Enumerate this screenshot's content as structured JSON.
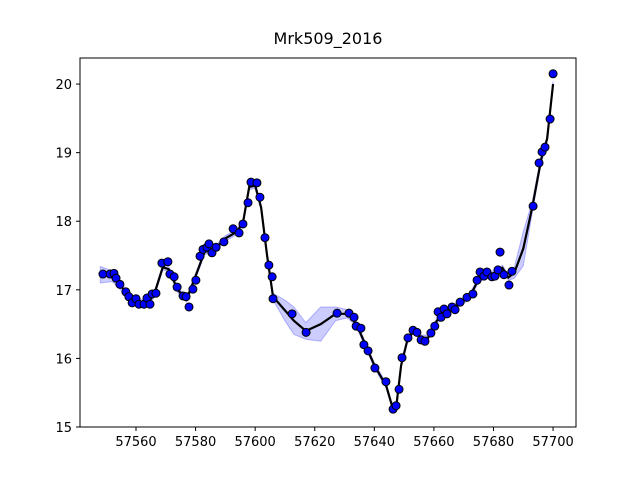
{
  "chart_data": {
    "type": "scatter",
    "title": "Mrk509_2016",
    "xlim": [
      57541.2,
      57707.7
    ],
    "ylim": [
      15,
      20.38
    ],
    "xticks": [
      57560,
      57580,
      57600,
      57620,
      57640,
      57660,
      57680,
      57700
    ],
    "yticks": [
      15,
      16,
      17,
      18,
      19,
      20
    ],
    "points": {
      "color": "#0000ff",
      "x": [
        57548.9,
        57551.3,
        57552.6,
        57553.3,
        57554.6,
        57556.6,
        57557.6,
        57558.7,
        57560,
        57561,
        57562.7,
        57563.7,
        57564.7,
        57565.4,
        57566.7,
        57568.7,
        57570.7,
        57571.4,
        57572.8,
        57573.8,
        57575.8,
        57576.8,
        57577.8,
        57579.1,
        57580.1,
        57581.5,
        57582.5,
        57583.8,
        57584.5,
        57585.5,
        57586.9,
        57589.5,
        57592.6,
        57594.6,
        57595.9,
        57597.6,
        57598.6,
        57600.6,
        57601.6,
        57603.3,
        57604.6,
        57605.7,
        57606,
        57612.4,
        57617.1,
        57627.5,
        57631.5,
        57633.2,
        57633.9,
        57635.5,
        57636.5,
        57637.9,
        57640.2,
        57643.9,
        57646.3,
        57647.3,
        57648.3,
        57649.3,
        57651.3,
        57653,
        57654.3,
        57655.7,
        57657,
        57659,
        57660.3,
        57661.4,
        57662.4,
        57663.4,
        57664.4,
        57666.1,
        57667.1,
        57668.8,
        57671.1,
        57673.1,
        57674.5,
        57675.5,
        57676.8,
        57677.8,
        57679.5,
        57680.5,
        57681.5,
        57682.2,
        57683.5,
        57685.2,
        57686.2,
        57693.3,
        57695.3,
        57696.3,
        57697.3,
        57699,
        57700
      ],
      "values": [
        17.23,
        17.23,
        17.24,
        17.17,
        17.08,
        16.97,
        16.9,
        16.81,
        16.87,
        16.79,
        16.79,
        16.88,
        16.79,
        16.94,
        16.95,
        17.39,
        17.41,
        17.23,
        17.19,
        17.04,
        16.91,
        16.9,
        16.75,
        17.01,
        17.14,
        17.49,
        17.59,
        17.62,
        17.67,
        17.54,
        17.62,
        17.7,
        17.89,
        17.83,
        17.96,
        18.27,
        18.57,
        18.56,
        18.35,
        17.76,
        17.36,
        17.19,
        16.87,
        16.65,
        16.38,
        16.66,
        16.66,
        16.6,
        16.47,
        16.44,
        16.2,
        16.11,
        15.86,
        15.66,
        15.26,
        15.31,
        15.55,
        16.01,
        16.3,
        16.41,
        16.38,
        16.27,
        16.25,
        16.37,
        16.47,
        16.68,
        16.6,
        16.72,
        16.65,
        16.75,
        16.71,
        16.82,
        16.89,
        16.94,
        17.14,
        17.26,
        17.2,
        17.26,
        17.19,
        17.2,
        17.29,
        17.55,
        17.22,
        17.07,
        17.27,
        18.22,
        18.85,
        19.01,
        19.08,
        19.49,
        20.15
      ]
    },
    "model": {
      "color": "#000000",
      "band_color": "#0000ff",
      "x": [
        57548,
        57552,
        57556,
        57560,
        57564,
        57566,
        57569,
        57571,
        57574,
        57577,
        57580,
        57583,
        57587,
        57590,
        57594,
        57596,
        57598,
        57600,
        57602,
        57604,
        57606,
        57610,
        57613,
        57617,
        57622,
        57627,
        57631,
        57634,
        57637,
        57640,
        57644,
        57646,
        57647.5,
        57649,
        57651,
        57653,
        57656,
        57658,
        57661,
        57664,
        57668,
        57672,
        57675,
        57678,
        57681,
        57683,
        57685,
        57687,
        57690,
        57693,
        57696,
        57698,
        57700
      ],
      "values": [
        17.22,
        17.2,
        17.0,
        16.82,
        16.82,
        16.92,
        17.33,
        17.3,
        17.0,
        16.86,
        17.2,
        17.55,
        17.62,
        17.75,
        17.85,
        18.0,
        18.5,
        18.52,
        18.2,
        17.5,
        16.9,
        16.7,
        16.55,
        16.4,
        16.5,
        16.65,
        16.65,
        16.5,
        16.2,
        15.9,
        15.6,
        15.3,
        15.35,
        15.9,
        16.25,
        16.4,
        16.3,
        16.3,
        16.55,
        16.67,
        16.78,
        16.9,
        17.15,
        17.22,
        17.25,
        17.32,
        17.18,
        17.25,
        17.6,
        18.2,
        18.9,
        19.2,
        20.0
      ],
      "upper": [
        17.34,
        17.28,
        17.05,
        16.86,
        16.86,
        16.96,
        17.37,
        17.34,
        17.04,
        16.9,
        17.24,
        17.59,
        17.66,
        17.79,
        17.89,
        18.04,
        18.54,
        18.56,
        18.24,
        17.54,
        16.95,
        16.85,
        16.75,
        16.52,
        16.75,
        16.75,
        16.71,
        16.54,
        16.24,
        15.94,
        15.64,
        15.33,
        15.38,
        15.94,
        16.29,
        16.44,
        16.34,
        16.34,
        16.59,
        16.71,
        16.82,
        16.94,
        17.19,
        17.26,
        17.29,
        17.36,
        17.22,
        17.33,
        17.85,
        18.28,
        18.96,
        19.24,
        20.04
      ],
      "lower": [
        17.1,
        17.12,
        16.95,
        16.78,
        16.78,
        16.88,
        17.29,
        17.26,
        16.96,
        16.82,
        17.16,
        17.51,
        17.58,
        17.71,
        17.81,
        17.96,
        18.46,
        18.48,
        18.16,
        17.46,
        16.85,
        16.55,
        16.35,
        16.28,
        16.25,
        16.55,
        16.59,
        16.46,
        16.16,
        15.86,
        15.56,
        15.27,
        15.32,
        15.86,
        16.21,
        16.36,
        16.26,
        16.26,
        16.51,
        16.63,
        16.74,
        16.86,
        17.11,
        17.18,
        17.21,
        17.28,
        17.14,
        17.17,
        17.35,
        18.12,
        18.84,
        19.16,
        19.96
      ]
    }
  }
}
